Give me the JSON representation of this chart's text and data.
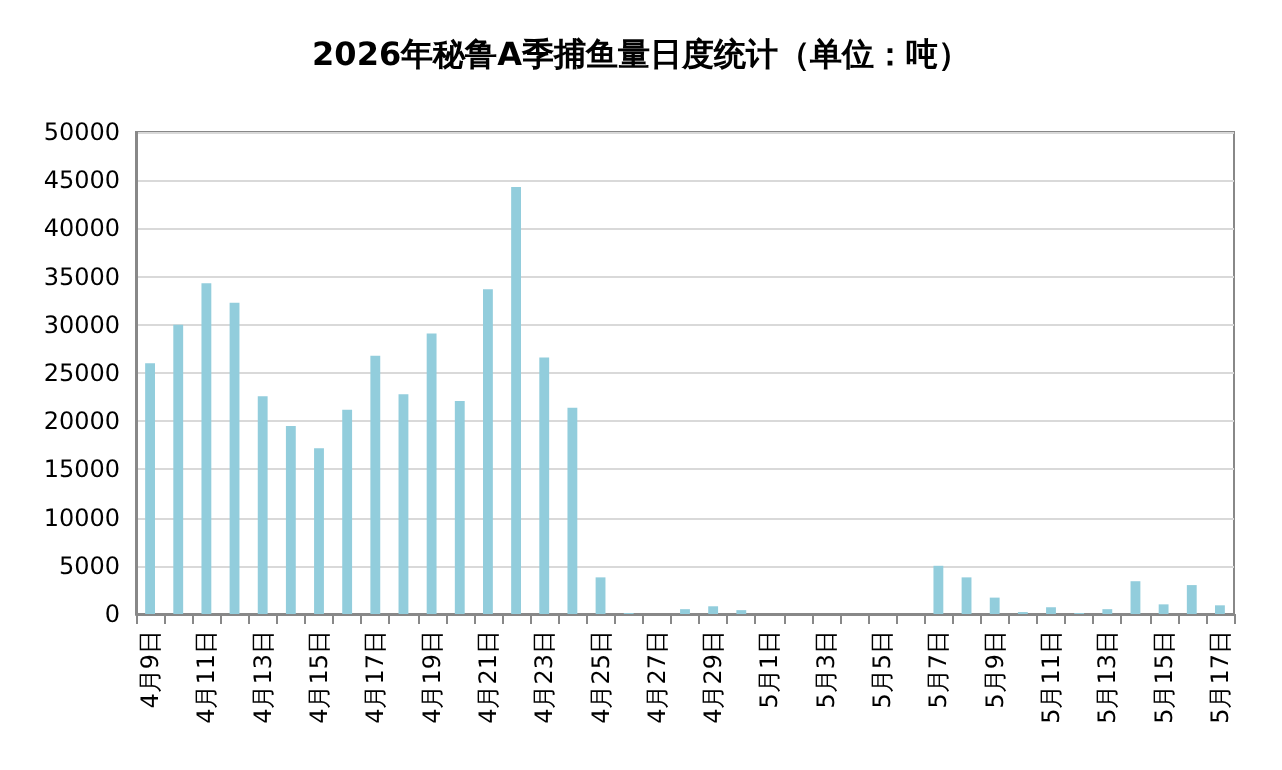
{
  "chart_data": {
    "type": "bar",
    "title": "2026年秘鲁A季捕鱼量日度统计（单位：吨）",
    "categories": [
      "4月9日",
      null,
      "4月11日",
      null,
      "4月13日",
      null,
      "4月15日",
      null,
      "4月17日",
      null,
      "4月19日",
      null,
      "4月21日",
      null,
      "4月23日",
      null,
      "4月25日",
      null,
      "4月27日",
      null,
      "4月29日",
      null,
      "5月1日",
      null,
      "5月3日",
      null,
      "5月5日",
      null,
      "5月7日",
      null,
      "5月9日",
      null,
      "5月11日",
      null,
      "5月13日",
      null,
      "5月15日",
      null,
      "5月17日"
    ],
    "values": [
      26000,
      30000,
      34300,
      32300,
      22600,
      19500,
      17200,
      21200,
      26800,
      22800,
      29100,
      22100,
      33700,
      44300,
      26600,
      21400,
      3800,
      100,
      0,
      500,
      800,
      400,
      0,
      0,
      0,
      0,
      0,
      0,
      5000,
      3800,
      1700,
      200,
      700,
      100,
      500,
      3400,
      1000,
      3000,
      900
    ],
    "color": "#92cddc",
    "ylim": [
      0,
      50000
    ],
    "yticks": [
      0,
      5000,
      10000,
      15000,
      20000,
      25000,
      30000,
      35000,
      40000,
      45000,
      50000
    ],
    "grid": "y"
  }
}
